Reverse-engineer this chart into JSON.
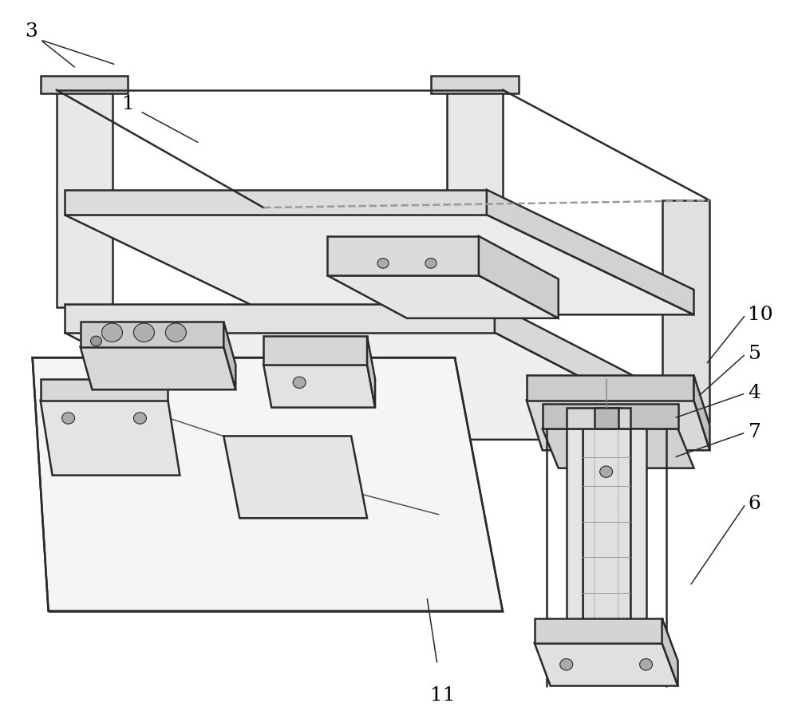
{
  "background_color": "#ffffff",
  "line_color": "#2a2a2a",
  "label_fontsize": 18,
  "fig_width": 10.0,
  "fig_height": 8.96
}
